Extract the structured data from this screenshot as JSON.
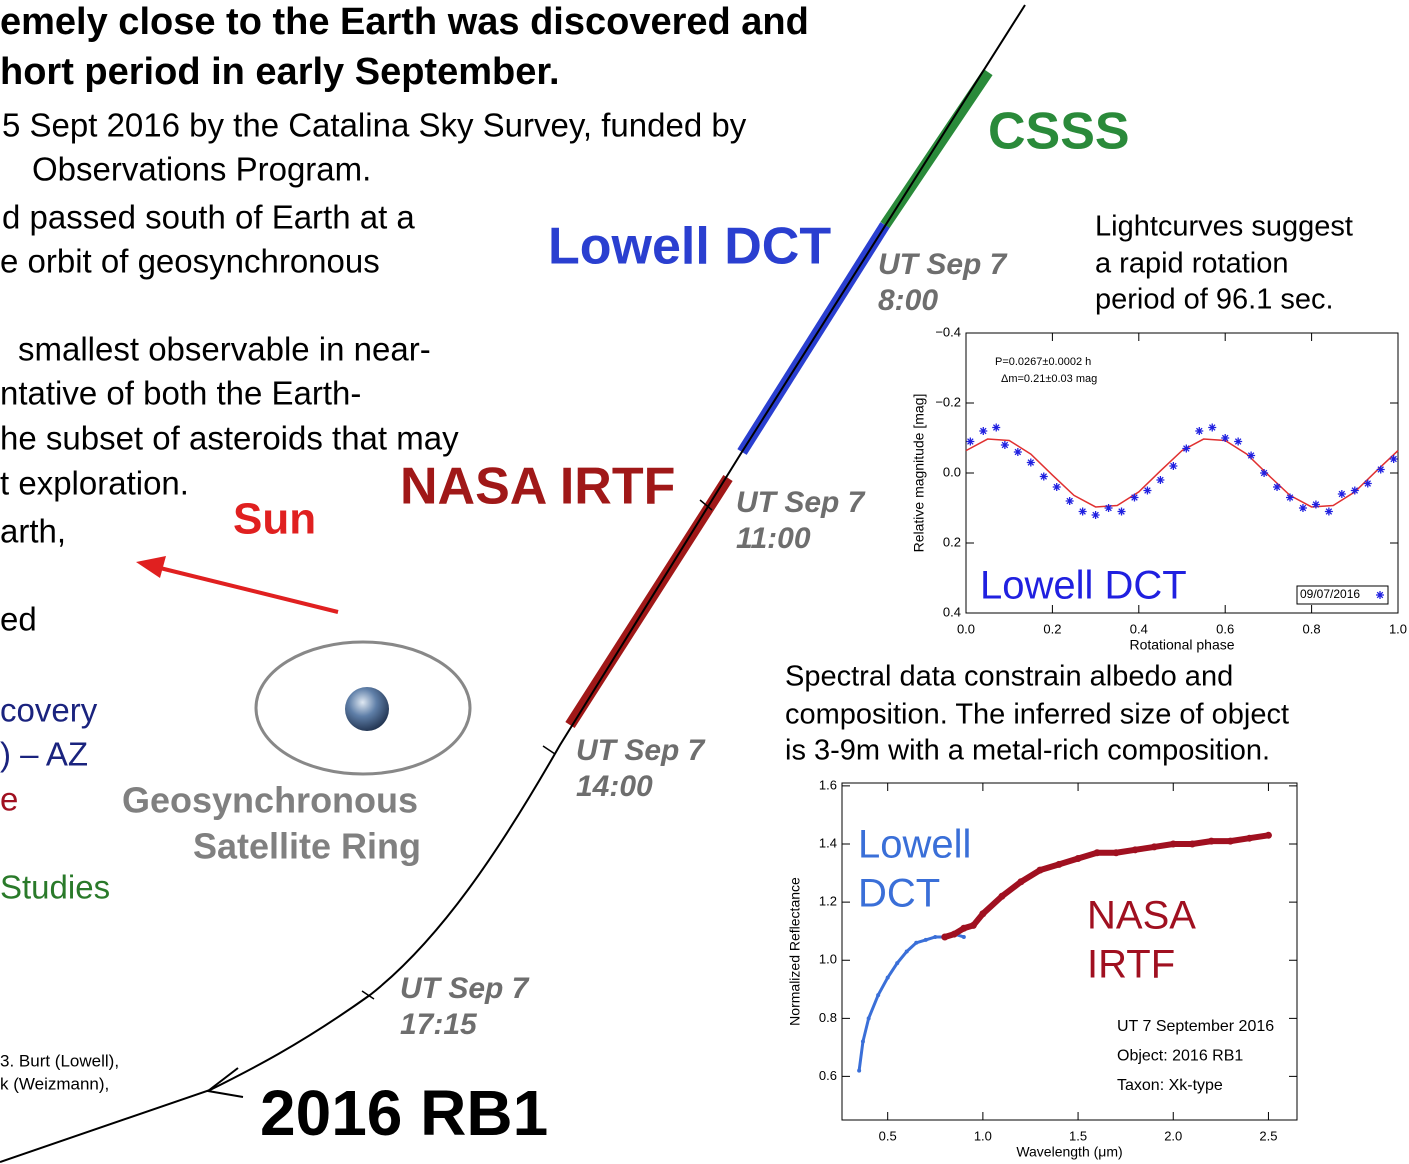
{
  "slide": {
    "title_lines": [
      "emely close to the Earth was discovered and",
      "hort period in early September."
    ],
    "body_lines": [
      "5 Sept 2016 by the Catalina Sky Survey, funded by",
      "Observations Program.",
      "d passed south of Earth at a",
      "e orbit of geosynchronous",
      "smallest observable in near-",
      "ntative of both the Earth-",
      "he subset of asteroids that may",
      "t exploration.",
      "arth,",
      "ed"
    ],
    "sponsor_lines": [
      "covery",
      ") – AZ",
      "e",
      "Studies"
    ],
    "credit_lines": [
      "3. Burt (Lowell),",
      "k (Weizmann),"
    ],
    "telescopes": [
      "CSSS",
      "Lowell DCT",
      "NASA IRTF"
    ],
    "sun": "Sun",
    "ring_lines": [
      "Geosynchronous",
      "Satellite Ring"
    ],
    "object": "2016 RB1",
    "times": [
      [
        "UT Sep 7",
        "8:00"
      ],
      [
        "UT Sep 7",
        "11:00"
      ],
      [
        "UT Sep 7",
        "14:00"
      ],
      [
        "UT Sep 7",
        "17:15"
      ]
    ],
    "lightcurve_caption": [
      "Lightcurves suggest",
      "a rapid rotation",
      "period of 96.1 sec."
    ],
    "spectral_caption": [
      "Spectral data constrain albedo and",
      "composition. The inferred size of object",
      "is 3-9m with a metal-rich composition."
    ]
  },
  "chart_data": [
    {
      "type": "scatter",
      "xlabel": "Rotational phase",
      "ylabel": "Relative magnitude [mag]",
      "annotations": [
        "P=0.0267±0.0002 h",
        "Δm=0.21±0.03 mag",
        "Lowell DCT"
      ],
      "xlim": [
        0,
        1
      ],
      "xticks": [
        {
          "value": 0,
          "label": "0.0"
        },
        0.2,
        0.4,
        0.6,
        0.8,
        {
          "value": 1,
          "label": "1.0"
        }
      ],
      "ylim": [
        0.4,
        -0.4
      ],
      "yticks": [
        0.4,
        0.2,
        {
          "value": 0,
          "label": "0.0"
        },
        {
          "value": -0.2,
          "label": "−0.2"
        },
        {
          "value": -0.4,
          "label": "−0.4"
        }
      ],
      "legend": "lower right",
      "series": [
        {
          "name": "09/07/2016",
          "color": "#2020e0",
          "x": [
            0.01,
            0.04,
            0.07,
            0.09,
            0.12,
            0.15,
            0.18,
            0.21,
            0.24,
            0.27,
            0.3,
            0.33,
            0.36,
            0.39,
            0.42,
            0.45,
            0.48,
            0.51,
            0.54,
            0.57,
            0.6,
            0.63,
            0.66,
            0.69,
            0.72,
            0.75,
            0.78,
            0.81,
            0.84,
            0.87,
            0.9,
            0.93,
            0.96,
            0.99
          ],
          "values": [
            -0.09,
            -0.12,
            -0.13,
            -0.08,
            -0.06,
            -0.03,
            0.01,
            0.04,
            0.08,
            0.11,
            0.12,
            0.1,
            0.11,
            0.07,
            0.05,
            0.02,
            -0.02,
            -0.07,
            -0.12,
            -0.13,
            -0.1,
            -0.09,
            -0.05,
            0.0,
            0.04,
            0.07,
            0.1,
            0.09,
            0.11,
            0.06,
            0.05,
            0.03,
            -0.01,
            -0.04
          ]
        }
      ],
      "fit": {
        "color": "#e03030",
        "x": [
          0,
          0.05,
          0.1,
          0.15,
          0.2,
          0.25,
          0.3,
          0.35,
          0.4,
          0.45,
          0.5,
          0.55,
          0.6,
          0.65,
          0.7,
          0.75,
          0.8,
          0.85,
          0.9,
          0.95,
          1
        ],
        "values": [
          -0.064,
          -0.097,
          -0.093,
          -0.054,
          0.006,
          0.064,
          0.097,
          0.093,
          0.054,
          -0.006,
          -0.064,
          -0.097,
          -0.093,
          -0.054,
          0.006,
          0.064,
          0.097,
          0.093,
          0.054,
          -0.006,
          -0.064
        ]
      }
    },
    {
      "type": "line",
      "xlabel": "Wavelength (μm)",
      "ylabel": "Normalized Reflectance",
      "annotations": [
        "UT 7 September 2016",
        "Object: 2016 RB1",
        "Taxon: Xk-type"
      ],
      "xlim": [
        0.26,
        2.65
      ],
      "xticks": [
        0.5,
        {
          "value": 1,
          "label": "1.0"
        },
        1.5,
        {
          "value": 2,
          "label": "2.0"
        },
        2.5
      ],
      "ylim": [
        0.45,
        1.61
      ],
      "yticks": [
        0.6,
        0.8,
        {
          "value": 1,
          "label": "1.0"
        },
        1.2,
        1.4,
        1.6
      ],
      "series": [
        {
          "label_lines": [
            "Lowell",
            "DCT"
          ],
          "color": "#3a6fd8",
          "x": [
            0.35,
            0.37,
            0.4,
            0.45,
            0.5,
            0.55,
            0.6,
            0.65,
            0.7,
            0.75,
            0.8,
            0.85,
            0.9
          ],
          "values": [
            0.62,
            0.72,
            0.8,
            0.88,
            0.94,
            0.99,
            1.03,
            1.06,
            1.07,
            1.08,
            1.08,
            1.09,
            1.08
          ]
        },
        {
          "label_lines": [
            "NASA",
            "IRTF"
          ],
          "color": "#a01020",
          "x": [
            0.8,
            0.85,
            0.9,
            0.95,
            1.0,
            1.1,
            1.2,
            1.3,
            1.4,
            1.5,
            1.6,
            1.7,
            1.8,
            1.9,
            2.0,
            2.1,
            2.2,
            2.3,
            2.4,
            2.5
          ],
          "values": [
            1.08,
            1.09,
            1.11,
            1.12,
            1.16,
            1.22,
            1.27,
            1.31,
            1.33,
            1.35,
            1.37,
            1.37,
            1.38,
            1.39,
            1.4,
            1.4,
            1.41,
            1.41,
            1.42,
            1.43
          ]
        }
      ]
    }
  ]
}
